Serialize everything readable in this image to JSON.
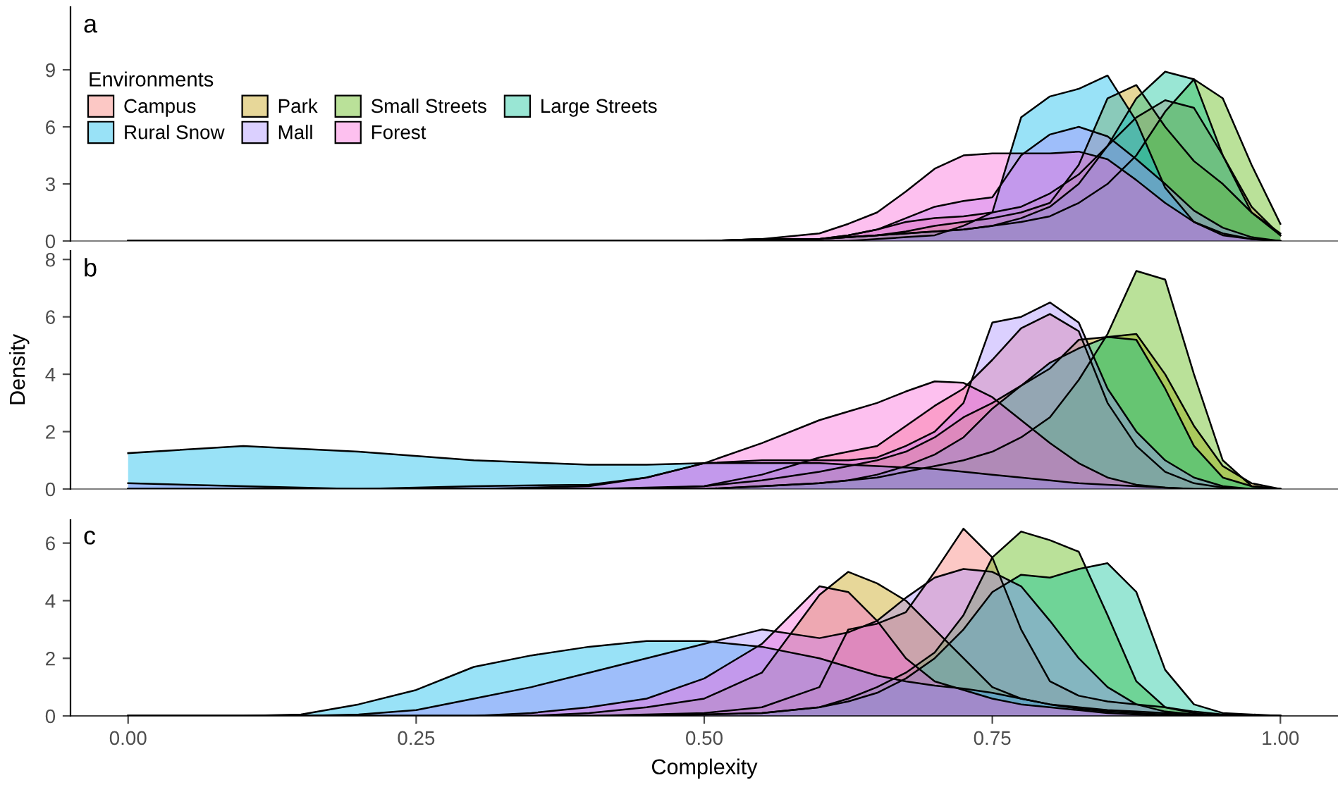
{
  "chart_data": [
    {
      "type": "area",
      "title": "a",
      "ylabel": null,
      "legend_title": "Environments",
      "legend": "top left",
      "tick_labels": "y",
      "x": [
        0,
        0.1,
        0.2,
        0.3,
        0.4,
        0.45,
        0.5,
        0.55,
        0.6,
        0.625,
        0.65,
        0.675,
        0.7,
        0.725,
        0.75,
        0.775,
        0.8,
        0.825,
        0.85,
        0.875,
        0.9,
        0.925,
        0.95,
        0.975,
        1.0
      ],
      "xlim": [
        -0.05,
        1.05
      ],
      "ylim": [
        0,
        12.3
      ],
      "yticks": [
        0,
        3,
        6,
        9
      ],
      "series": [
        {
          "name": "Campus",
          "color": "#f8766d",
          "values": [
            0,
            0,
            0,
            0,
            0,
            0,
            0,
            0,
            0.1,
            0.3,
            0.6,
            1.0,
            1.2,
            1.3,
            1.5,
            1.8,
            2.5,
            3.5,
            5.0,
            6.5,
            7.4,
            7.0,
            4.5,
            1.8,
            0.3
          ]
        },
        {
          "name": "Park",
          "color": "#c49a00",
          "values": [
            0,
            0,
            0,
            0,
            0,
            0,
            0,
            0.1,
            0.1,
            0.2,
            0.3,
            0.5,
            0.8,
            1.0,
            1.2,
            1.5,
            2.0,
            4.0,
            7.5,
            8.2,
            6.0,
            4.2,
            3.0,
            1.5,
            0.4
          ]
        },
        {
          "name": "Small Streets",
          "color": "#53b400",
          "values": [
            0,
            0,
            0,
            0,
            0,
            0,
            0,
            0.1,
            0.1,
            0.2,
            0.3,
            0.4,
            0.5,
            0.6,
            0.8,
            1.0,
            1.3,
            2.0,
            3.0,
            4.5,
            6.8,
            8.5,
            7.5,
            4.0,
            0.9
          ]
        },
        {
          "name": "Large Streets",
          "color": "#00c094",
          "values": [
            0,
            0,
            0,
            0,
            0,
            0,
            0,
            0,
            0.1,
            0.2,
            0.3,
            0.4,
            0.5,
            0.6,
            0.8,
            1.2,
            1.8,
            3.0,
            5.0,
            7.5,
            8.9,
            8.5,
            4.5,
            1.5,
            0.3
          ]
        },
        {
          "name": "Rural Snow",
          "color": "#00b6eb",
          "values": [
            0,
            0,
            0,
            0,
            0,
            0,
            0,
            0,
            0,
            0,
            0.1,
            0.2,
            0.3,
            0.8,
            1.5,
            6.5,
            7.6,
            8.0,
            8.7,
            6.3,
            2.8,
            1.0,
            0.3,
            0.1,
            0
          ]
        },
        {
          "name": "Mall",
          "color": "#a58aff",
          "values": [
            0,
            0,
            0,
            0,
            0,
            0,
            0,
            0,
            0.1,
            0.3,
            0.6,
            1.2,
            1.8,
            2.1,
            2.3,
            4.5,
            5.6,
            6.0,
            5.5,
            4.3,
            3.0,
            1.6,
            0.7,
            0.2,
            0
          ]
        },
        {
          "name": "Forest",
          "color": "#fb61d7",
          "values": [
            0,
            0,
            0,
            0,
            0,
            0,
            0,
            0.1,
            0.4,
            0.9,
            1.5,
            2.6,
            3.8,
            4.5,
            4.6,
            4.6,
            4.6,
            4.7,
            4.3,
            3.2,
            2.0,
            1.0,
            0.4,
            0.1,
            0
          ]
        }
      ]
    },
    {
      "type": "area",
      "title": "b",
      "ylabel": "Density",
      "tick_labels": "y",
      "x": [
        0,
        0.1,
        0.2,
        0.3,
        0.4,
        0.45,
        0.5,
        0.55,
        0.6,
        0.625,
        0.65,
        0.675,
        0.7,
        0.725,
        0.75,
        0.775,
        0.8,
        0.825,
        0.85,
        0.875,
        0.9,
        0.925,
        0.95,
        0.975,
        1.0
      ],
      "xlim": [
        -0.05,
        1.05
      ],
      "ylim": [
        0,
        8.3
      ],
      "yticks": [
        0,
        2,
        4,
        6,
        8
      ],
      "series": [
        {
          "color": "#f8766d",
          "values": [
            0,
            0,
            0,
            0,
            0,
            0.05,
            0.1,
            0.5,
            1.1,
            1.3,
            1.5,
            2.2,
            2.9,
            3.5,
            4.5,
            5.6,
            6.1,
            5.5,
            3.0,
            1.5,
            0.6,
            0.2,
            0.05,
            0,
            0
          ]
        },
        {
          "color": "#c49a00",
          "values": [
            0,
            0,
            0,
            0,
            0,
            0,
            0.1,
            0.3,
            0.6,
            0.8,
            1.0,
            1.3,
            1.8,
            2.5,
            3.0,
            3.6,
            4.2,
            5.2,
            5.3,
            5.4,
            4.0,
            2.2,
            0.8,
            0.2,
            0
          ]
        },
        {
          "color": "#53b400",
          "values": [
            0,
            0,
            0,
            0,
            0,
            0,
            0,
            0.1,
            0.2,
            0.3,
            0.4,
            0.6,
            0.8,
            1.0,
            1.3,
            1.8,
            2.5,
            3.8,
            5.4,
            7.6,
            7.3,
            4.0,
            1.0,
            0.1,
            0
          ]
        },
        {
          "color": "#00c094",
          "values": [
            0,
            0,
            0,
            0,
            0,
            0,
            0,
            0.1,
            0.2,
            0.3,
            0.5,
            0.8,
            1.2,
            1.8,
            2.8,
            3.6,
            4.4,
            4.9,
            5.3,
            5.2,
            3.5,
            1.5,
            0.4,
            0.1,
            0
          ]
        },
        {
          "color": "#00b6eb",
          "values": [
            1.25,
            1.5,
            1.3,
            1.0,
            0.85,
            0.85,
            0.9,
            0.9,
            0.9,
            0.85,
            0.8,
            0.75,
            0.7,
            0.6,
            0.5,
            0.4,
            0.3,
            0.2,
            0.15,
            0.1,
            0.05,
            0,
            0,
            0,
            0
          ]
        },
        {
          "color": "#a58aff",
          "values": [
            0.2,
            0.1,
            0,
            0.1,
            0.15,
            0.4,
            0.9,
            1.0,
            1.0,
            1.0,
            1.1,
            1.5,
            2.0,
            3.0,
            5.8,
            6.0,
            6.5,
            5.8,
            3.5,
            2.0,
            1.0,
            0.4,
            0.1,
            0,
            0
          ]
        },
        {
          "color": "#fb61d7",
          "values": [
            0,
            0,
            0,
            0,
            0.1,
            0.4,
            0.9,
            1.6,
            2.4,
            2.7,
            3.0,
            3.4,
            3.75,
            3.7,
            3.2,
            2.4,
            1.6,
            0.9,
            0.4,
            0.15,
            0.05,
            0,
            0,
            0,
            0
          ]
        }
      ]
    },
    {
      "type": "area",
      "title": "c",
      "xlabel": "Complexity",
      "x": [
        0,
        0.1,
        0.15,
        0.2,
        0.25,
        0.3,
        0.35,
        0.4,
        0.45,
        0.5,
        0.55,
        0.6,
        0.625,
        0.65,
        0.675,
        0.7,
        0.725,
        0.75,
        0.775,
        0.8,
        0.825,
        0.85,
        0.875,
        0.9,
        0.925,
        0.95,
        1.0
      ],
      "xlim": [
        -0.05,
        1.05
      ],
      "xticks": [
        {
          "value": 0,
          "label": "0.00"
        },
        {
          "value": 0.25,
          "label": "0.25"
        },
        {
          "value": 0.5,
          "label": "0.50"
        },
        {
          "value": 0.75,
          "label": "0.75"
        },
        {
          "value": 1,
          "label": "1.00"
        }
      ],
      "ylim": [
        0,
        6.8
      ],
      "yticks": [
        0,
        2,
        4,
        6
      ],
      "series": [
        {
          "color": "#f8766d",
          "values": [
            0,
            0,
            0,
            0,
            0,
            0,
            0,
            0,
            0.05,
            0.1,
            0.3,
            1.0,
            3.0,
            3.2,
            3.6,
            5.0,
            6.5,
            5.5,
            3.0,
            1.2,
            0.7,
            0.5,
            0.4,
            0.3,
            0.15,
            0.05,
            0
          ]
        },
        {
          "color": "#c49a00",
          "values": [
            0,
            0,
            0,
            0,
            0,
            0,
            0,
            0.1,
            0.3,
            0.6,
            1.5,
            4.2,
            5.0,
            4.6,
            4.0,
            3.0,
            2.0,
            1.0,
            0.6,
            0.4,
            0.3,
            0.2,
            0.15,
            0.1,
            0.05,
            0,
            0
          ]
        },
        {
          "color": "#53b400",
          "values": [
            0,
            0,
            0,
            0,
            0,
            0,
            0,
            0,
            0,
            0.05,
            0.1,
            0.3,
            0.6,
            1.0,
            1.5,
            2.2,
            3.5,
            5.5,
            6.4,
            6.1,
            5.7,
            3.5,
            1.2,
            0.3,
            0.1,
            0,
            0
          ]
        },
        {
          "color": "#00c094",
          "values": [
            0,
            0,
            0,
            0,
            0,
            0,
            0,
            0,
            0,
            0.05,
            0.1,
            0.3,
            0.5,
            0.8,
            1.3,
            2.0,
            3.0,
            4.3,
            4.9,
            4.8,
            5.1,
            5.3,
            4.3,
            1.6,
            0.4,
            0.1,
            0
          ]
        },
        {
          "color": "#00b6eb",
          "values": [
            0,
            0,
            0.05,
            0.4,
            0.9,
            1.7,
            2.1,
            2.4,
            2.6,
            2.6,
            2.4,
            2.0,
            1.7,
            1.4,
            1.2,
            1.05,
            0.95,
            0.8,
            0.6,
            0.4,
            0.25,
            0.15,
            0.1,
            0.05,
            0,
            0,
            0
          ]
        },
        {
          "color": "#a58aff",
          "values": [
            0,
            0,
            0,
            0.05,
            0.2,
            0.6,
            1.0,
            1.5,
            2.0,
            2.5,
            3.0,
            2.7,
            2.9,
            3.3,
            4.1,
            4.8,
            5.1,
            5.0,
            4.5,
            3.3,
            2.0,
            1.0,
            0.4,
            0.15,
            0.05,
            0,
            0
          ]
        },
        {
          "color": "#fb61d7",
          "values": [
            0,
            0,
            0,
            0,
            0,
            0,
            0.1,
            0.3,
            0.6,
            1.3,
            2.5,
            4.5,
            4.3,
            3.3,
            2.0,
            1.2,
            0.9,
            0.6,
            0.4,
            0.3,
            0.2,
            0.1,
            0.05,
            0,
            0,
            0,
            0
          ]
        }
      ]
    }
  ]
}
